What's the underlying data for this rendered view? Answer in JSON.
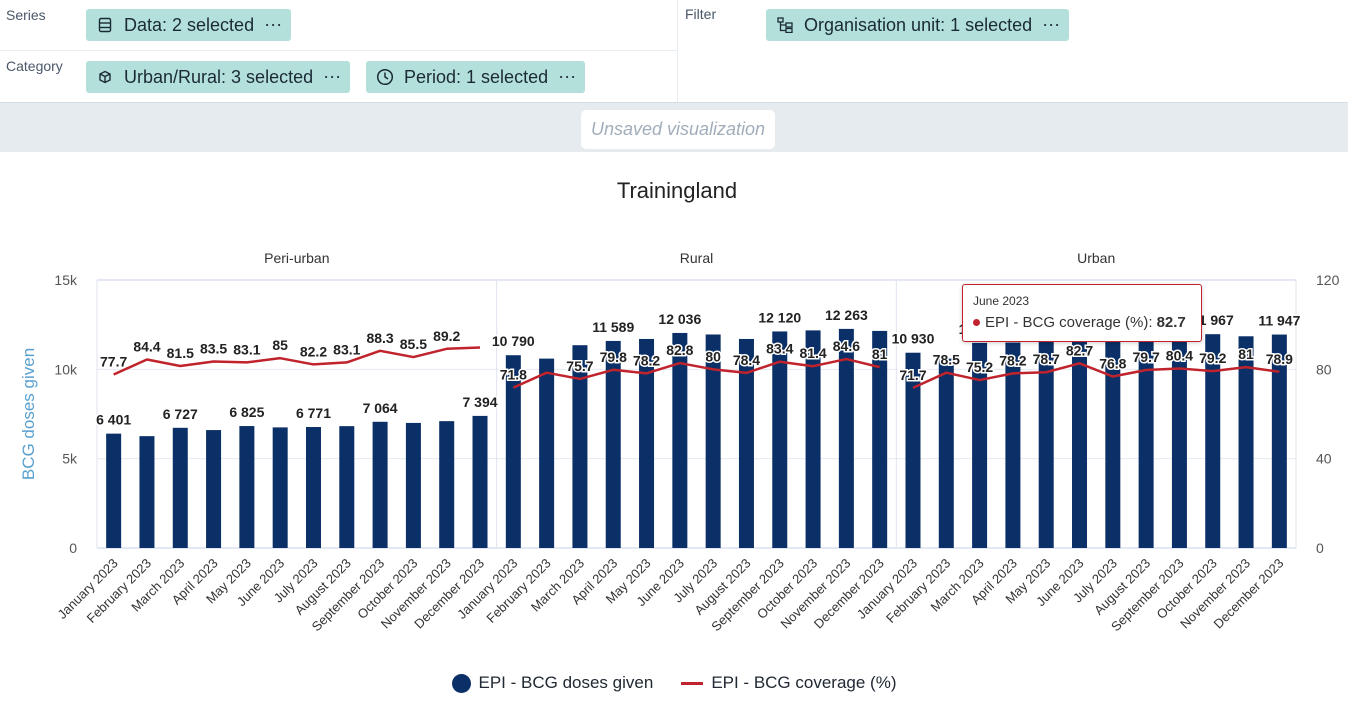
{
  "layout": {
    "series_label": "Series",
    "category_label": "Category",
    "filter_label": "Filter",
    "chips": {
      "data": "Data: 2 selected",
      "urban_rural": "Urban/Rural: 3 selected",
      "period": "Period: 1 selected",
      "org_unit": "Organisation unit: 1 selected",
      "more": "⋯"
    }
  },
  "visualization_title": "Unsaved visualization",
  "tooltip": {
    "period": "June 2023",
    "series": "EPI - BCG coverage (%):",
    "value": "82.7"
  },
  "colors": {
    "bar": "#0b2f67",
    "line": "#c0232c",
    "chip": "#b3e0da",
    "ylabel": "#5aa0cf"
  },
  "chart_data": {
    "type": "bar",
    "title": "Trainingland",
    "groups": [
      "Peri-urban",
      "Rural",
      "Urban"
    ],
    "categories": [
      "January 2023",
      "February 2023",
      "March 2023",
      "April 2023",
      "May 2023",
      "June 2023",
      "July 2023",
      "August 2023",
      "September 2023",
      "October 2023",
      "November 2023",
      "December 2023"
    ],
    "ylabel": "BCG doses given",
    "y_ticks": [
      "0",
      "5k",
      "10k",
      "15k"
    ],
    "ylim": [
      0,
      15000
    ],
    "y2_ticks": [
      "0",
      "40",
      "80",
      "120"
    ],
    "y2lim": [
      0,
      120
    ],
    "series": [
      {
        "name": "EPI - BCG doses given",
        "type": "bar",
        "axis": "left",
        "values": [
          [
            6401,
            6260,
            6727,
            6600,
            6825,
            6750,
            6771,
            6820,
            7064,
            7000,
            7100,
            7394
          ],
          [
            10790,
            10600,
            11350,
            11589,
            11700,
            12036,
            11950,
            11700,
            12120,
            12180,
            12263,
            12150
          ],
          [
            10930,
            10600,
            11482,
            11500,
            11700,
            12133,
            11700,
            11800,
            11850,
            11967,
            11850,
            11947
          ]
        ],
        "labels": [
          [
            "6 401",
            "",
            "6 727",
            "",
            "6 825",
            "",
            "6 771",
            "",
            "7 064",
            "",
            "",
            "7 394"
          ],
          [
            "10 790",
            "",
            "",
            "11 589",
            "",
            "12 036",
            "",
            "",
            "12 120",
            "",
            "12 263",
            ""
          ],
          [
            "10 930",
            "",
            "11 482",
            "",
            "",
            "12 133",
            "",
            "",
            "",
            "11 967",
            "",
            "11 947"
          ]
        ]
      },
      {
        "name": "EPI - BCG coverage (%)",
        "type": "line",
        "axis": "right",
        "values": [
          [
            77.7,
            84.4,
            81.5,
            83.5,
            83.1,
            85,
            82.2,
            83.1,
            88.3,
            85.5,
            89.2,
            89.8
          ],
          [
            71.8,
            78.5,
            75.7,
            79.8,
            78.2,
            82.8,
            80,
            78.4,
            83.4,
            81.4,
            84.6,
            81
          ],
          [
            71.7,
            78.5,
            75.2,
            78.2,
            78.7,
            82.7,
            76.8,
            79.7,
            80.4,
            79.2,
            81,
            78.9
          ]
        ],
        "labels": [
          [
            "77.7",
            "84.4",
            "81.5",
            "83.5",
            "83.1",
            "85",
            "82.2",
            "83.1",
            "88.3",
            "85.5",
            "89.2",
            ""
          ],
          [
            "71.8",
            "",
            "75.7",
            "79.8",
            "78.2",
            "82.8",
            "80",
            "78.4",
            "83.4",
            "81.4",
            "84.6",
            "81"
          ],
          [
            "71.7",
            "78.5",
            "75.2",
            "78.2",
            "78.7",
            "82.7",
            "76.8",
            "79.7",
            "80.4",
            "79.2",
            "81",
            "78.9"
          ]
        ]
      }
    ],
    "legend": "bottom-center",
    "grid": true
  }
}
